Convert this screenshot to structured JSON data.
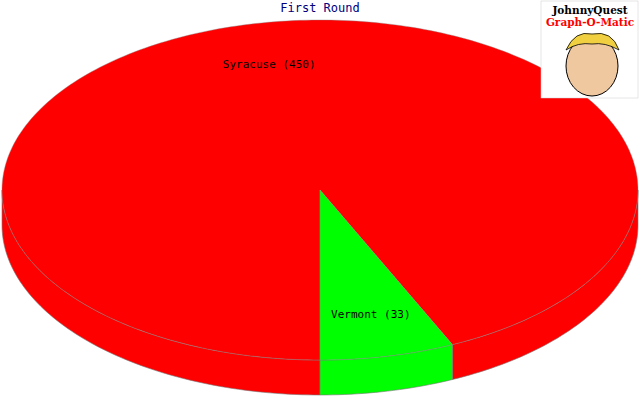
{
  "chart_data": {
    "type": "pie",
    "title": "First Round",
    "categories": [
      "Syracuse (450)",
      "Vermont (33)"
    ],
    "values": [
      450,
      33
    ],
    "colors": [
      "#ff0000",
      "#00ff00"
    ],
    "annotations": [
      "JohnnyQuest",
      "Graph-O-Matic"
    ]
  }
}
